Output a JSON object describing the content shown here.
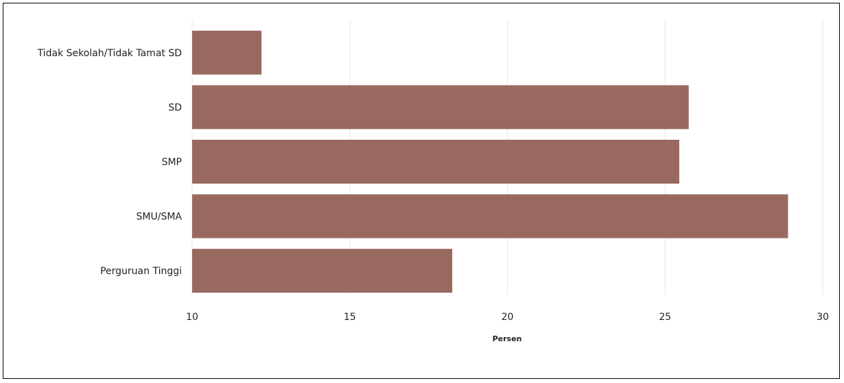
{
  "chart_data": {
    "type": "bar",
    "orientation": "horizontal",
    "categories": [
      "Tidak Sekolah/Tidak Tamat SD",
      "SD",
      "SMP",
      "SMU/SMA",
      "Perguruan Tinggi"
    ],
    "values": [
      12.2,
      25.75,
      25.45,
      28.9,
      18.25
    ],
    "xlabel": "Persen",
    "ylabel": "",
    "xlim": [
      10,
      30
    ],
    "xticks": [
      10,
      15,
      20,
      25,
      30
    ],
    "grid": true,
    "bar_color": "#996960"
  }
}
